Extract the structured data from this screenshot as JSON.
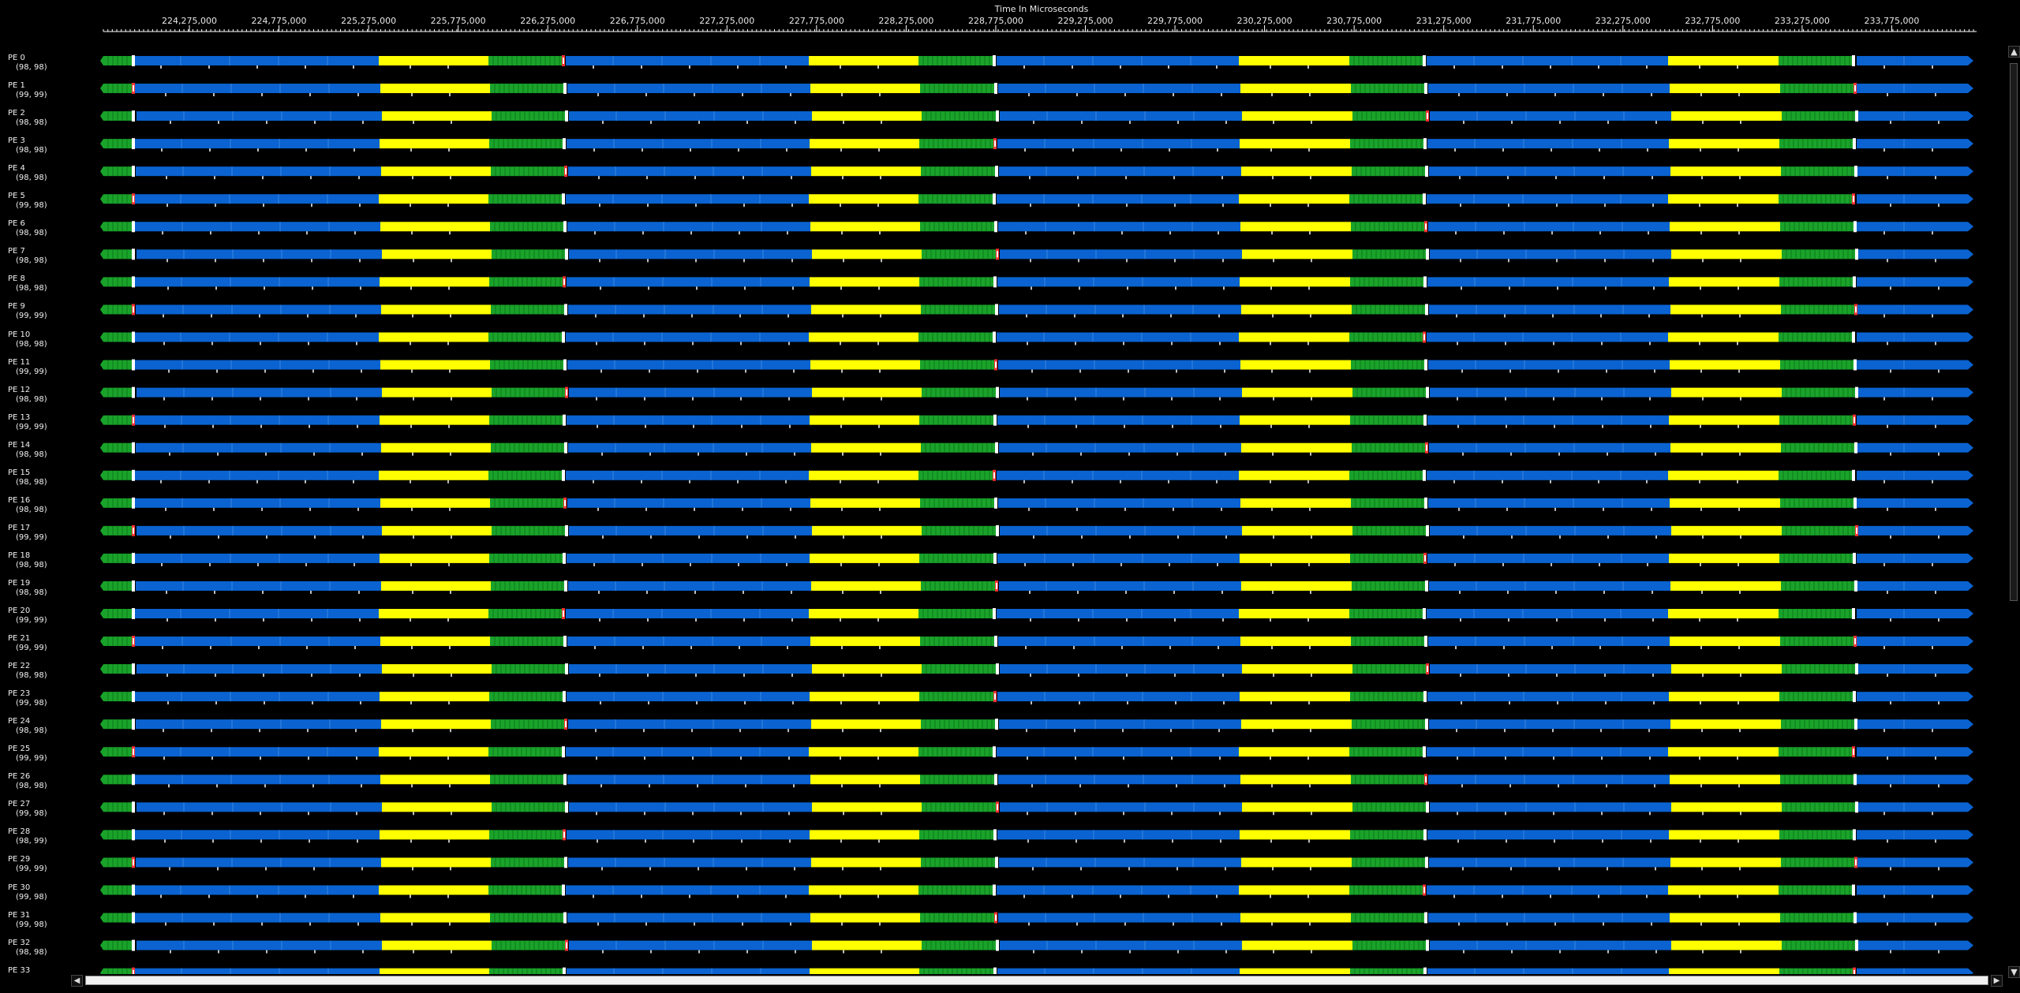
{
  "axis": {
    "title": "Time In Microseconds",
    "tick_labels": [
      "224,275,000",
      "224,775,000",
      "225,275,000",
      "225,775,000",
      "226,275,000",
      "226,775,000",
      "227,275,000",
      "227,775,000",
      "228,275,000",
      "228,775,000",
      "229,275,000",
      "229,775,000",
      "230,275,000",
      "230,775,000",
      "231,275,000",
      "231,775,000",
      "232,275,000",
      "232,775,000",
      "233,275,000",
      "233,775,000"
    ]
  },
  "pes": [
    {
      "name": "PE 0",
      "stats": "(98, 98)"
    },
    {
      "name": "PE 1",
      "stats": "(99, 99)"
    },
    {
      "name": "PE 2",
      "stats": "(98, 98)"
    },
    {
      "name": "PE 3",
      "stats": "(98, 98)"
    },
    {
      "name": "PE 4",
      "stats": "(98, 98)"
    },
    {
      "name": "PE 5",
      "stats": "(99, 98)"
    },
    {
      "name": "PE 6",
      "stats": "(98, 98)"
    },
    {
      "name": "PE 7",
      "stats": "(98, 98)"
    },
    {
      "name": "PE 8",
      "stats": "(98, 98)"
    },
    {
      "name": "PE 9",
      "stats": "(99, 99)"
    },
    {
      "name": "PE 10",
      "stats": "(98, 98)"
    },
    {
      "name": "PE 11",
      "stats": "(99, 99)"
    },
    {
      "name": "PE 12",
      "stats": "(98, 98)"
    },
    {
      "name": "PE 13",
      "stats": "(99, 99)"
    },
    {
      "name": "PE 14",
      "stats": "(98, 98)"
    },
    {
      "name": "PE 15",
      "stats": "(98, 98)"
    },
    {
      "name": "PE 16",
      "stats": "(98, 98)"
    },
    {
      "name": "PE 17",
      "stats": "(99, 99)"
    },
    {
      "name": "PE 18",
      "stats": "(98, 98)"
    },
    {
      "name": "PE 19",
      "stats": "(98, 98)"
    },
    {
      "name": "PE 20",
      "stats": "(99, 99)"
    },
    {
      "name": "PE 21",
      "stats": "(99, 99)"
    },
    {
      "name": "PE 22",
      "stats": "(98, 98)"
    },
    {
      "name": "PE 23",
      "stats": "(99, 98)"
    },
    {
      "name": "PE 24",
      "stats": "(98, 98)"
    },
    {
      "name": "PE 25",
      "stats": "(99, 99)"
    },
    {
      "name": "PE 26",
      "stats": "(98, 98)"
    },
    {
      "name": "PE 27",
      "stats": "(99, 98)"
    },
    {
      "name": "PE 28",
      "stats": "(98, 99)"
    },
    {
      "name": "PE 29",
      "stats": "(99, 99)"
    },
    {
      "name": "PE 30",
      "stats": "(99, 98)"
    },
    {
      "name": "PE 31",
      "stats": "(99, 98)"
    },
    {
      "name": "PE 32",
      "stats": "(98, 98)"
    },
    {
      "name": "PE 33",
      "stats": ""
    }
  ],
  "colors": {
    "background": "#000000",
    "blue_phase": "#0a63d1",
    "yellow_phase": "#ffff00",
    "green_phase": "#1aa32a",
    "green_stripe": "#0c7a1a",
    "marker": "#ffffff",
    "marker_red": "#ff3030"
  },
  "scroll": {
    "up_icon": "▲",
    "down_icon": "▼",
    "left_icon": "◀",
    "right_icon": "▶"
  }
}
